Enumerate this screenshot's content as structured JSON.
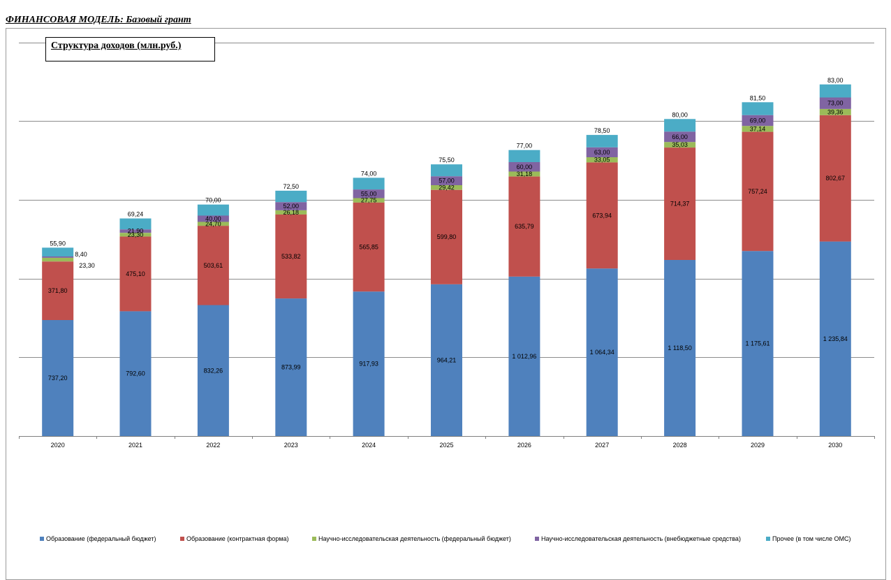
{
  "page_title": "ФИНАНСОВАЯ МОДЕЛЬ: Базовый грант",
  "chart_data": {
    "type": "bar",
    "stacked": true,
    "title": "Структура доходов (млн.руб.)",
    "xlabel": "",
    "ylabel": "",
    "ylim": [
      0,
      2500
    ],
    "grid": true,
    "legend_position": "bottom",
    "categories": [
      "2020",
      "2021",
      "2022",
      "2023",
      "2024",
      "2025",
      "2026",
      "2027",
      "2028",
      "2029",
      "2030"
    ],
    "series": [
      {
        "name": "Образование (федеральный бюджет)",
        "color": "#4F81BD",
        "values": [
          737.2,
          792.6,
          832.26,
          873.99,
          917.93,
          964.21,
          1012.96,
          1064.34,
          1118.5,
          1175.61,
          1235.84
        ],
        "labels": [
          "737,20",
          "792,60",
          "832,26",
          "873,99",
          "917,93",
          "964,21",
          "1 012,96",
          "1 064,34",
          "1 118,50",
          "1 175,61",
          "1 235,84"
        ]
      },
      {
        "name": "Образование (контрактная форма)",
        "color": "#C0504D",
        "values": [
          371.8,
          475.1,
          503.61,
          533.82,
          565.85,
          599.8,
          635.79,
          673.94,
          714.37,
          757.24,
          802.67
        ],
        "labels": [
          "371,80",
          "475,10",
          "503,61",
          "533,82",
          "565,85",
          "599,80",
          "635,79",
          "673,94",
          "714,37",
          "757,24",
          "802,67"
        ]
      },
      {
        "name": "Научно-исследовательская деятельность (федеральный бюджет)",
        "color": "#9BBB59",
        "values": [
          23.3,
          23.3,
          24.7,
          26.18,
          27.75,
          29.42,
          31.18,
          33.05,
          35.03,
          37.14,
          39.36
        ],
        "labels": [
          "23,30",
          "23,30",
          "24,70",
          "26,18",
          "27,75",
          "29,42",
          "31,18",
          "33,05",
          "35,03",
          "37,14",
          "39,36"
        ]
      },
      {
        "name": "Научно-исследовательская деятельность (внебюджетные средства)",
        "color": "#8064A2",
        "values": [
          8.4,
          21.9,
          40.0,
          52.0,
          55.0,
          57.0,
          60.0,
          63.0,
          66.0,
          69.0,
          73.0
        ],
        "labels": [
          "8,40",
          "21,90",
          "40,00",
          "52,00",
          "55,00",
          "57,00",
          "60,00",
          "63,00",
          "66,00",
          "69,00",
          "73,00"
        ]
      },
      {
        "name": "Прочее (в том числе ОМС)",
        "color": "#4BACC6",
        "values": [
          55.9,
          69.24,
          70.0,
          72.5,
          74.0,
          75.5,
          77.0,
          78.5,
          80.0,
          81.5,
          83.0
        ],
        "labels": [
          "55,90",
          "69,24",
          "70,00",
          "72,50",
          "74,00",
          "75,50",
          "77,00",
          "78,50",
          "80,00",
          "81,50",
          "83,00"
        ]
      }
    ]
  }
}
